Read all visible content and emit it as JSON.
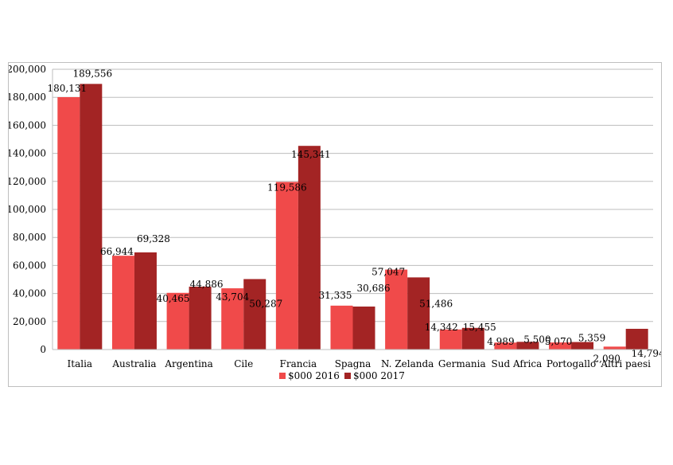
{
  "chart_data": {
    "type": "bar",
    "title": "",
    "xlabel": "",
    "ylabel": "",
    "ylim": [
      0,
      200000
    ],
    "yticks": [
      "0",
      "20,000",
      "40,000",
      "60,000",
      "80,000",
      "100,000",
      "120,000",
      "140,000",
      "160,000",
      "180,000",
      "200,000"
    ],
    "grid": true,
    "legend": "bottom",
    "categories": [
      "Italia",
      "Australia",
      "Argentina",
      "Cile",
      "Francia",
      "Spagna",
      "N. Zelanda",
      "Germania",
      "Sud Africa",
      "Portogallo",
      "Altri paesi"
    ],
    "series": [
      {
        "name": "$000 2016",
        "color": "#f04a4a",
        "values": [
          180131,
          66944,
          40465,
          43704,
          119586,
          31335,
          57047,
          14342,
          4989,
          5070,
          2090
        ],
        "labels": [
          "180,131",
          "66,944",
          "40,465",
          "43,704",
          "119,586",
          "31,335",
          "57,047",
          "14,342",
          "4,989",
          "5,070",
          "2,090"
        ]
      },
      {
        "name": "$000 2017",
        "color": "#a32424",
        "values": [
          189556,
          69328,
          44886,
          50287,
          145341,
          30686,
          51486,
          15455,
          5500,
          5359,
          14794
        ],
        "labels": [
          "189,556",
          "69,328",
          "44,886",
          "50,287",
          "145,341",
          "30,686",
          "51,486",
          "15,455",
          "5,500",
          "5,359",
          "14,794"
        ]
      }
    ]
  }
}
